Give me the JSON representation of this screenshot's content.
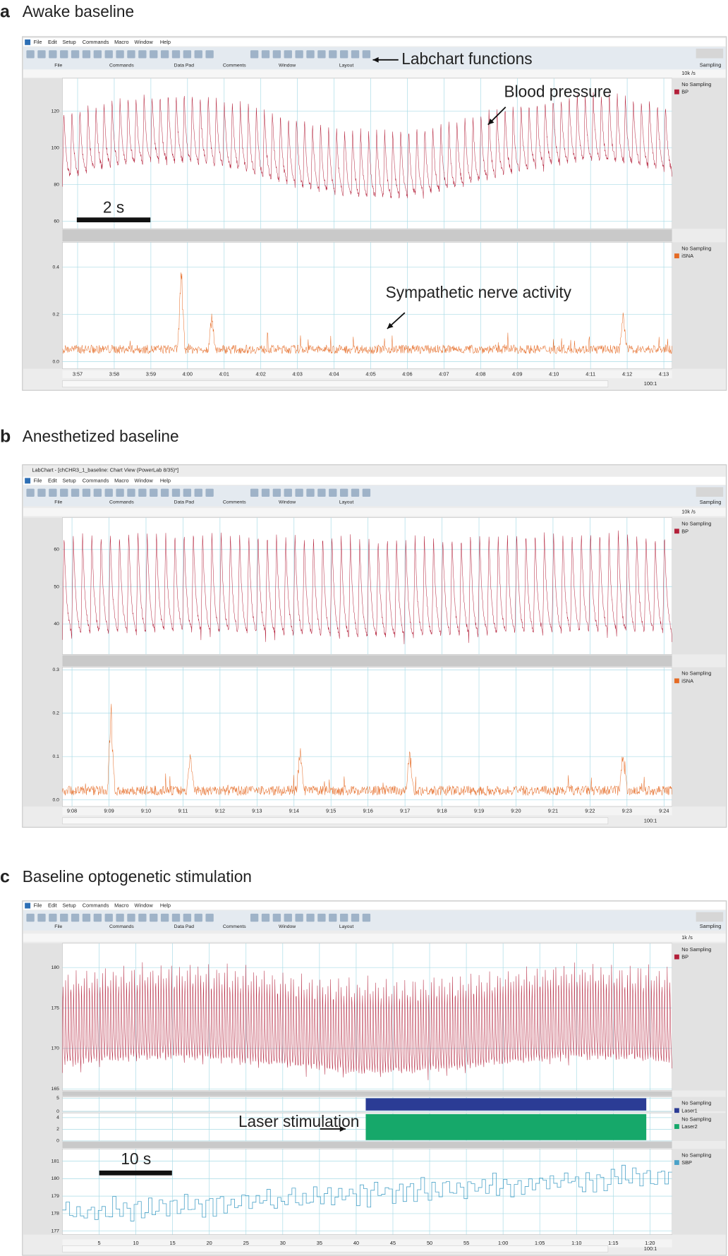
{
  "panels": [
    {
      "letter": "a",
      "title": "Awake baseline",
      "menu": [
        "File",
        "Edit",
        "Setup",
        "Commands",
        "Macro",
        "Window",
        "Help"
      ],
      "toolbar": [
        "File",
        "Commands",
        "Data Pad",
        "Comments",
        "Window",
        "Layout"
      ],
      "rate": "10k /s",
      "sampling": "Sampling",
      "zoom": "100:1",
      "channels": [
        {
          "name": "BP",
          "status": "No Sampling",
          "color": "#b3203a",
          "trace": "pulse",
          "ylim": [
            56,
            138
          ],
          "yticks": [
            60,
            80,
            100,
            120
          ]
        },
        {
          "name": "iSNA",
          "status": "No Sampling",
          "color": "#e56a24",
          "trace": "noise",
          "ylim": [
            -0.03,
            0.505
          ],
          "yticks": [
            {
              "value": 0,
              "label": "0.0"
            },
            0.2,
            0.4
          ]
        }
      ],
      "xticks": [
        "3:57",
        "3:58",
        "3:59",
        "4:00",
        "4:01",
        "4:02",
        "4:03",
        "4:04",
        "4:05",
        "4:06",
        "4:07",
        "4:08",
        "4:09",
        "4:10",
        "4:11",
        "4:12",
        "4:13"
      ],
      "annotations": [
        "Labchart functions",
        "Blood pressure",
        "Sympathetic nerve activity"
      ],
      "scale_bar": "2 s"
    },
    {
      "letter": "b",
      "title": "Anesthetized baseline",
      "window_title": "LabChart - [chCHR3_1_baseline: Chart View (PowerLab 8/35)*]",
      "menu": [
        "File",
        "Edit",
        "Setup",
        "Commands",
        "Macro",
        "Window",
        "Help"
      ],
      "toolbar": [
        "File",
        "Commands",
        "Data Pad",
        "Comments",
        "Window",
        "Layout"
      ],
      "rate": "10k /s",
      "sampling": "Sampling",
      "zoom": "100:1",
      "channels": [
        {
          "name": "BP",
          "status": "No Sampling",
          "color": "#b3203a",
          "trace": "pulse",
          "ylim": [
            31.8,
            68.6
          ],
          "yticks": [
            40,
            50,
            60
          ]
        },
        {
          "name": "iSNA",
          "status": "No Sampling",
          "color": "#e56a24",
          "trace": "noise",
          "ylim": [
            -0.015,
            0.306
          ],
          "yticks": [
            {
              "value": 0,
              "label": "0.0"
            },
            0.1,
            0.2,
            0.3
          ]
        }
      ],
      "xticks": [
        "9:08",
        "9:09",
        "9:10",
        "9:11",
        "9:12",
        "9:13",
        "9:14",
        "9:15",
        "9:16",
        "9:17",
        "9:18",
        "9:19",
        "9:20",
        "9:21",
        "9:22",
        "9:23",
        "9:24"
      ]
    },
    {
      "letter": "c",
      "title": "Baseline optogenetic stimulation",
      "menu": [
        "File",
        "Edit",
        "Setup",
        "Commands",
        "Macro",
        "Window",
        "Help"
      ],
      "toolbar": [
        "File",
        "Commands",
        "Data Pad",
        "Comments",
        "Window",
        "Layout"
      ],
      "rate": "1k /s",
      "sampling": "Sampling",
      "zoom": "100:1",
      "channels": [
        {
          "name": "BP",
          "status": "No Sampling",
          "color": "#b3203a",
          "trace": "pulse",
          "ylim": [
            164.8,
            183
          ],
          "yticks": [
            165,
            170,
            175,
            180
          ]
        },
        {
          "name": "Laser1",
          "status": "No Sampling",
          "color": "#2b3c95",
          "trace": "stim",
          "ylim": [
            0,
            5.5
          ],
          "yticks": [
            0,
            5
          ],
          "stim": {
            "start": 41.3,
            "end": 79.5,
            "level": 5
          }
        },
        {
          "name": "Laser2",
          "status": "No Sampling",
          "color": "#16a86a",
          "trace": "stim",
          "ylim": [
            0,
            4.8
          ],
          "yticks": [
            0,
            2,
            4
          ],
          "stim": {
            "start": 41.3,
            "end": 79.5,
            "level": 4.6
          }
        },
        {
          "name": "SBP",
          "status": "No Sampling",
          "color": "#4aa2c8",
          "trace": "steps",
          "ylim": [
            176.8,
            181.7
          ],
          "yticks": [
            177,
            178,
            179,
            180,
            181
          ]
        }
      ],
      "xlim": [
        0,
        83
      ],
      "xticks": [
        5,
        10,
        15,
        20,
        25,
        30,
        35,
        40,
        45,
        50,
        55,
        {
          "value": 60,
          "label": "1:00"
        },
        {
          "value": 65,
          "label": "1:05"
        },
        {
          "value": 70,
          "label": "1:10"
        },
        {
          "value": 75,
          "label": "1:15"
        },
        {
          "value": 80,
          "label": "1:20"
        }
      ],
      "annotations": [
        "Laser stimulation"
      ],
      "scale_bar": "10 s"
    }
  ]
}
